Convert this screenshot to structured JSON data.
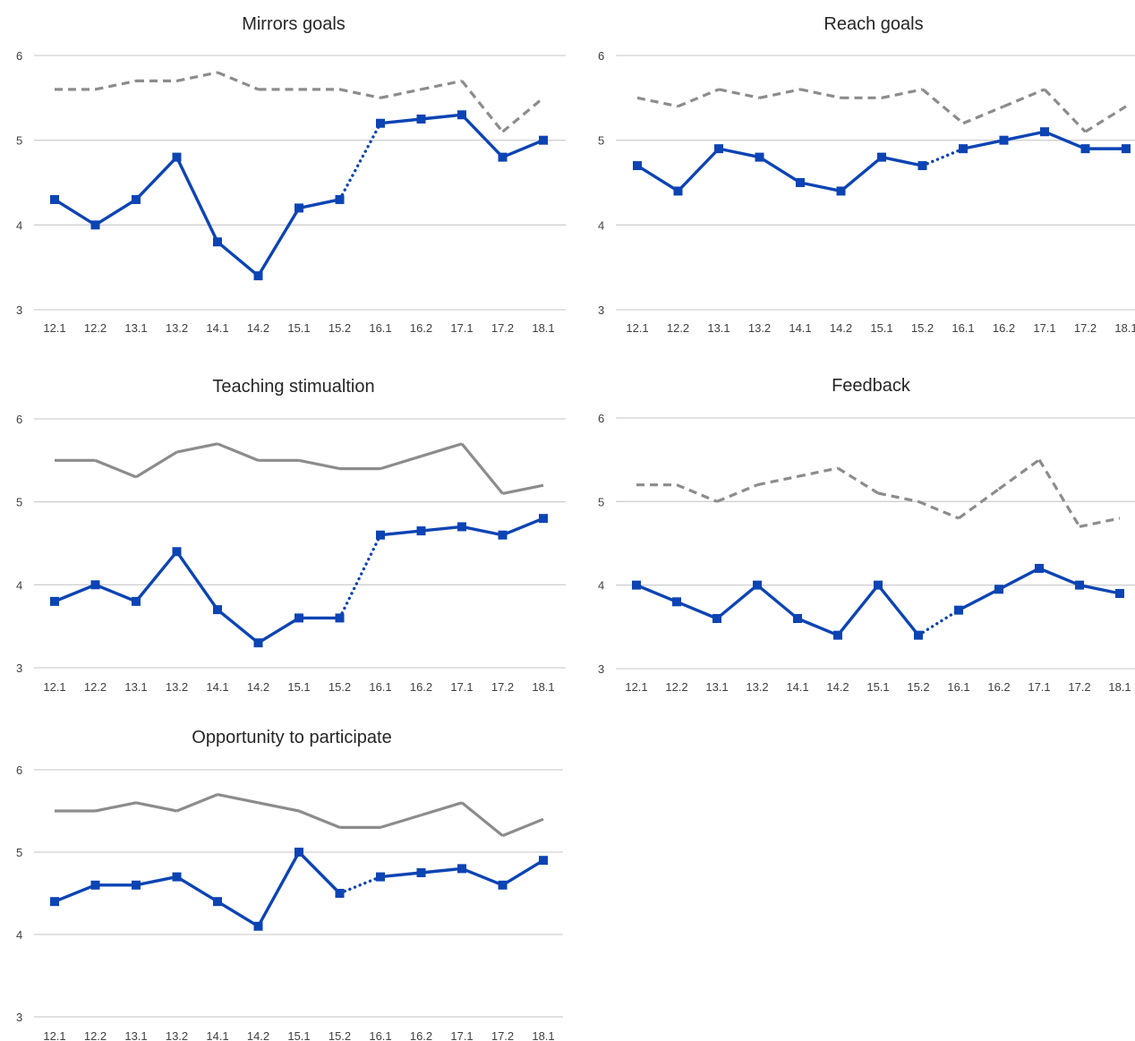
{
  "chart_data": [
    {
      "type": "line",
      "title": "Mirrors goals",
      "categories": [
        "12.1",
        "12.2",
        "13.1",
        "13.2",
        "14.1",
        "14.2",
        "15.1",
        "15.2",
        "16.1",
        "16.2",
        "17.1",
        "17.2",
        "18.1"
      ],
      "ylim": [
        3,
        6
      ],
      "yticks": [
        "3",
        "4",
        "5",
        "6"
      ],
      "grid": true,
      "series": [
        {
          "style": "dashed",
          "color": "#8c8c8c",
          "markers": false,
          "values": [
            5.6,
            5.6,
            5.7,
            5.7,
            5.8,
            5.6,
            5.6,
            5.6,
            5.5,
            5.6,
            5.7,
            5.1,
            5.5
          ]
        },
        {
          "style": "solid",
          "color": "#0c44b4",
          "markers": true,
          "dotted_between": [
            7,
            8
          ],
          "values": [
            4.3,
            4.0,
            4.3,
            4.8,
            3.8,
            3.4,
            4.2,
            4.3,
            5.2,
            5.25,
            5.3,
            4.8,
            5.0
          ]
        }
      ]
    },
    {
      "type": "line",
      "title": "Reach goals",
      "categories": [
        "12.1",
        "12.2",
        "13.1",
        "13.2",
        "14.1",
        "14.2",
        "15.1",
        "15.2",
        "16.1",
        "16.2",
        "17.1",
        "17.2",
        "18.1"
      ],
      "ylim": [
        3,
        6
      ],
      "yticks": [
        "3",
        "4",
        "5",
        "6"
      ],
      "grid": true,
      "series": [
        {
          "style": "dashed",
          "color": "#8c8c8c",
          "markers": false,
          "values": [
            5.5,
            5.4,
            5.6,
            5.5,
            5.6,
            5.5,
            5.5,
            5.6,
            5.2,
            5.4,
            5.6,
            5.1,
            5.4
          ]
        },
        {
          "style": "solid",
          "color": "#0c44b4",
          "markers": true,
          "dotted_between": [
            7,
            8
          ],
          "values": [
            4.7,
            4.4,
            4.9,
            4.8,
            4.5,
            4.4,
            4.8,
            4.7,
            4.9,
            5.0,
            5.1,
            4.9,
            4.9
          ]
        }
      ]
    },
    {
      "type": "line",
      "title": "Teaching stimualtion",
      "categories": [
        "12.1",
        "12.2",
        "13.1",
        "13.2",
        "14.1",
        "14.2",
        "15.1",
        "15.2",
        "16.1",
        "16.2",
        "17.1",
        "17.2",
        "18.1"
      ],
      "ylim": [
        3,
        6
      ],
      "yticks": [
        "3",
        "4",
        "5",
        "6"
      ],
      "grid": true,
      "series": [
        {
          "style": "solid",
          "color": "#8c8c8c",
          "markers": false,
          "values": [
            5.5,
            5.5,
            5.3,
            5.6,
            5.7,
            5.5,
            5.5,
            5.4,
            5.4,
            5.55,
            5.7,
            5.1,
            5.2
          ]
        },
        {
          "style": "solid",
          "color": "#0c44b4",
          "markers": true,
          "dotted_between": [
            7,
            8
          ],
          "values": [
            3.8,
            4.0,
            3.8,
            4.4,
            3.7,
            3.3,
            3.6,
            3.6,
            4.6,
            4.65,
            4.7,
            4.6,
            4.8
          ]
        }
      ]
    },
    {
      "type": "line",
      "title": "Feedback",
      "categories": [
        "12.1",
        "12.2",
        "13.1",
        "13.2",
        "14.1",
        "14.2",
        "15.1",
        "15.2",
        "16.1",
        "16.2",
        "17.1",
        "17.2",
        "18.1"
      ],
      "ylim": [
        3,
        6
      ],
      "yticks": [
        "3",
        "4",
        "5",
        "6"
      ],
      "grid": true,
      "series": [
        {
          "style": "dashed",
          "color": "#8c8c8c",
          "markers": false,
          "values": [
            5.2,
            5.2,
            5.0,
            5.2,
            5.3,
            5.4,
            5.1,
            5.0,
            4.8,
            5.15,
            5.5,
            4.7,
            4.8
          ]
        },
        {
          "style": "solid",
          "color": "#0c44b4",
          "markers": true,
          "dotted_between": [
            7,
            8
          ],
          "values": [
            4.0,
            3.8,
            3.6,
            4.0,
            3.6,
            3.4,
            4.0,
            3.4,
            3.7,
            3.95,
            4.2,
            4.0,
            3.9
          ]
        }
      ]
    },
    {
      "type": "line",
      "title": "Opportunity to participate",
      "categories": [
        "12.1",
        "12.2",
        "13.1",
        "13.2",
        "14.1",
        "14.2",
        "15.1",
        "15.2",
        "16.1",
        "16.2",
        "17.1",
        "17.2",
        "18.1"
      ],
      "ylim": [
        3,
        6
      ],
      "yticks": [
        "3",
        "4",
        "5",
        "6"
      ],
      "grid": true,
      "series": [
        {
          "style": "solid",
          "color": "#8c8c8c",
          "markers": false,
          "values": [
            5.5,
            5.5,
            5.6,
            5.5,
            5.7,
            5.6,
            5.5,
            5.3,
            5.3,
            5.45,
            5.6,
            5.2,
            5.4
          ]
        },
        {
          "style": "solid",
          "color": "#0c44b4",
          "markers": true,
          "dotted_between": [
            7,
            8
          ],
          "values": [
            4.4,
            4.6,
            4.6,
            4.7,
            4.4,
            4.1,
            5.0,
            4.5,
            4.7,
            4.75,
            4.8,
            4.6,
            4.9
          ]
        }
      ]
    }
  ]
}
